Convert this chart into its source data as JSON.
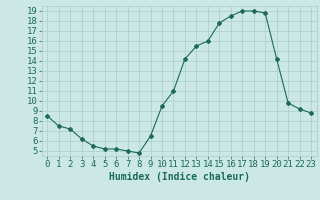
{
  "x": [
    0,
    1,
    2,
    3,
    4,
    5,
    6,
    7,
    8,
    9,
    10,
    11,
    12,
    13,
    14,
    15,
    16,
    17,
    18,
    19,
    20,
    21,
    22,
    23
  ],
  "y": [
    8.5,
    7.5,
    7.2,
    6.2,
    5.5,
    5.2,
    5.2,
    5.0,
    4.8,
    6.5,
    9.5,
    11.0,
    14.2,
    15.5,
    16.0,
    17.8,
    18.5,
    19.0,
    19.0,
    18.8,
    14.2,
    9.8,
    9.2,
    8.8
  ],
  "line_color": "#1a6b5a",
  "marker": "D",
  "marker_size": 2,
  "bg_color": "#cce8e4",
  "grid_color": "#aaccc8",
  "tick_color": "#1a6b5a",
  "xlabel": "Humidex (Indice chaleur)",
  "xlim": [
    -0.5,
    23.5
  ],
  "ylim": [
    4.5,
    19.5
  ],
  "yticks": [
    5,
    6,
    7,
    8,
    9,
    10,
    11,
    12,
    13,
    14,
    15,
    16,
    17,
    18,
    19
  ],
  "xticks": [
    0,
    1,
    2,
    3,
    4,
    5,
    6,
    7,
    8,
    9,
    10,
    11,
    12,
    13,
    14,
    15,
    16,
    17,
    18,
    19,
    20,
    21,
    22,
    23
  ],
  "fontsize_label": 7,
  "fontsize_tick": 6.5
}
